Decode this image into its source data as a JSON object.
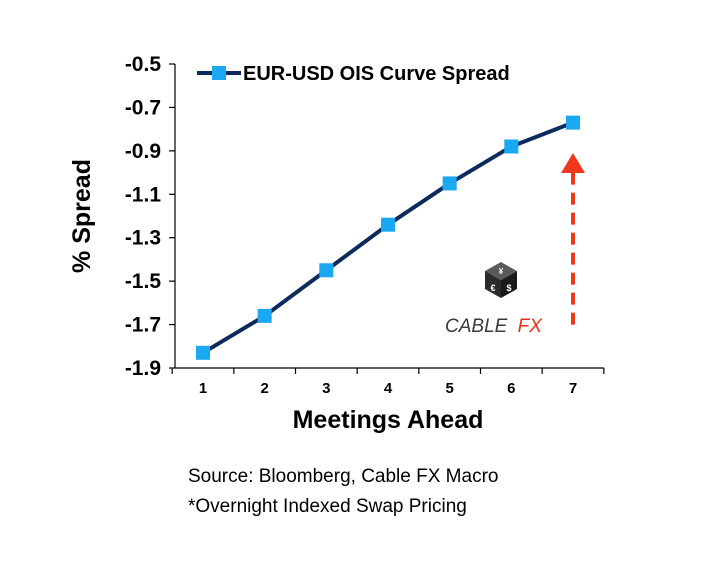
{
  "chart_data": {
    "type": "line",
    "xlabel": "Meetings Ahead",
    "ylabel": "% Spread",
    "x": [
      1,
      2,
      3,
      4,
      5,
      6,
      7
    ],
    "ylim": [
      -1.9,
      -0.5
    ],
    "yticks": [
      "-0.5",
      "-0.7",
      "-0.9",
      "-1.1",
      "-1.3",
      "-1.5",
      "-1.7",
      "-1.9"
    ],
    "ytick_values": [
      -0.5,
      -0.7,
      -0.9,
      -1.1,
      -1.3,
      -1.5,
      -1.7,
      -1.9
    ],
    "series": [
      {
        "name": "EUR-USD OIS Curve Spread",
        "values": [
          -1.83,
          -1.66,
          -1.45,
          -1.24,
          -1.05,
          -0.88,
          -0.77
        ]
      }
    ],
    "grid": false,
    "legend": "top",
    "annotation_arrow": {
      "x": 7,
      "from_y": -1.7,
      "to_y": -0.91,
      "style": "dashed",
      "direction": "up"
    },
    "colors": {
      "line": "#0d2a5c",
      "marker": "#1aa8f0",
      "arrow": "#f0371b"
    }
  },
  "logo": {
    "text_main": "CABLE",
    "text_accent": "FX",
    "accent_color": "#e8311b"
  },
  "footnotes": {
    "source": "Source: Bloomberg, Cable FX Macro",
    "note": "*Overnight Indexed Swap Pricing"
  }
}
